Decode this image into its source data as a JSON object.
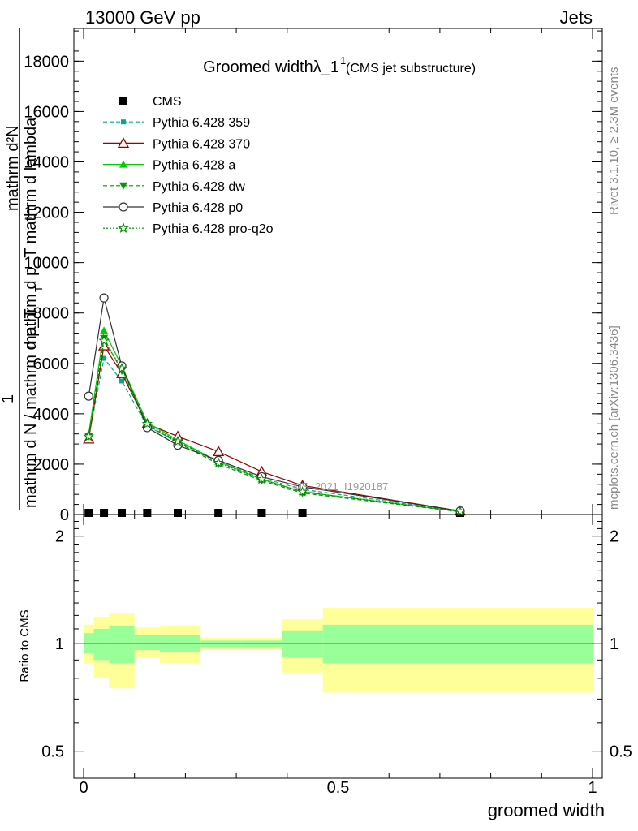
{
  "header": {
    "left": "13000 GeV pp",
    "right": "Jets"
  },
  "side_text": {
    "rivet": "Rivet 3.1.10, ≥ 2.3M events",
    "mcplots": "mcplots.cern.ch [arXiv:1306.3436]"
  },
  "analysis_label": "CMS_2021_I1920187",
  "chart_data": [
    {
      "type": "line",
      "title": "Groomed widthλ_1",
      "title_superscript": "1",
      "subtitle": "(CMS jet substructure)",
      "ylabel_numerator_line1": "mathrm d²N",
      "ylabel_numerator_line2": "mathrm d p_T mathrm d lambda",
      "ylabel_fraction_one": "1",
      "ylabel_denominator": "mathrm d N / mathrm d p_T",
      "ylabel_sub": "T",
      "xlim": [
        -0.02,
        1.02
      ],
      "ylim": [
        0,
        19300
      ],
      "yticks": [
        {
          "v": 0,
          "label": "0"
        },
        {
          "v": 2000,
          "label": "2000"
        },
        {
          "v": 4000,
          "label": "4000"
        },
        {
          "v": 6000,
          "label": "6000"
        },
        {
          "v": 8000,
          "label": "8000"
        },
        {
          "v": 10000,
          "label": "10000"
        },
        {
          "v": 12000,
          "label": "12000"
        },
        {
          "v": 14000,
          "label": "14000"
        },
        {
          "v": 16000,
          "label": "16000"
        },
        {
          "v": 18000,
          "label": "18000"
        }
      ],
      "legend_position": "top-left",
      "x": [
        0.01,
        0.04,
        0.075,
        0.125,
        0.185,
        0.265,
        0.35,
        0.43,
        0.74
      ],
      "series": [
        {
          "name": "CMS",
          "color": "#000000",
          "style": "none",
          "marker": "filled-square",
          "values": [
            40,
            40,
            30,
            20,
            15,
            10,
            8,
            6,
            2
          ]
        },
        {
          "name": "Pythia 6.428 359",
          "color": "#00aa88",
          "style": "dashed",
          "marker": "filled-square-small",
          "values": [
            3100,
            6200,
            5300,
            3500,
            2900,
            2100,
            1450,
            1000,
            130
          ]
        },
        {
          "name": "Pythia 6.428 370",
          "color": "#990000",
          "style": "solid",
          "marker": "open-triangle",
          "values": [
            3000,
            6700,
            5600,
            3600,
            3100,
            2500,
            1700,
            1150,
            140
          ]
        },
        {
          "name": "Pythia 6.428 a",
          "color": "#00cc00",
          "style": "solid",
          "marker": "filled-triangle",
          "values": [
            3200,
            7300,
            5900,
            3650,
            2950,
            2100,
            1400,
            900,
            120
          ]
        },
        {
          "name": "Pythia 6.428 dw",
          "color": "#009900",
          "style": "dashed",
          "marker": "filled-triangle-down",
          "values": [
            3100,
            7000,
            5700,
            3550,
            2850,
            2000,
            1350,
            850,
            110
          ]
        },
        {
          "name": "Pythia 6.428 p0",
          "color": "#333333",
          "style": "solid",
          "marker": "open-circle",
          "values": [
            4700,
            8600,
            5900,
            3450,
            2750,
            2150,
            1500,
            1100,
            140
          ]
        },
        {
          "name": "Pythia 6.428 pro-q2o",
          "color": "#008800",
          "style": "dotted",
          "marker": "open-star",
          "values": [
            3100,
            6900,
            5800,
            3600,
            2900,
            2050,
            1400,
            900,
            120
          ]
        }
      ]
    },
    {
      "type": "area",
      "ylabel": "Ratio to CMS",
      "xlabel": "groomed width",
      "scale": "log",
      "ylim": [
        0.42,
        2.3
      ],
      "xlim": [
        -0.02,
        1.02
      ],
      "yticks": [
        {
          "v": 0.5,
          "label": "0.5"
        },
        {
          "v": 1,
          "label": "1"
        },
        {
          "v": 2,
          "label": "2"
        }
      ],
      "xticks": [
        {
          "v": 0,
          "label": "0"
        },
        {
          "v": 0.5,
          "label": "0.5"
        },
        {
          "v": 1,
          "label": "1"
        }
      ],
      "band_colors": {
        "inner": "#99ff99",
        "outer": "#ffff99"
      },
      "bins": [
        {
          "lo": 0.0,
          "hi": 0.02,
          "in_lo": 0.94,
          "in_hi": 1.07,
          "out_lo": 0.88,
          "out_hi": 1.13
        },
        {
          "lo": 0.02,
          "hi": 0.05,
          "in_lo": 0.9,
          "in_hi": 1.1,
          "out_lo": 0.8,
          "out_hi": 1.19
        },
        {
          "lo": 0.05,
          "hi": 0.1,
          "in_lo": 0.88,
          "in_hi": 1.12,
          "out_lo": 0.75,
          "out_hi": 1.22
        },
        {
          "lo": 0.1,
          "hi": 0.15,
          "in_lo": 0.96,
          "in_hi": 1.06,
          "out_lo": 0.92,
          "out_hi": 1.11
        },
        {
          "lo": 0.15,
          "hi": 0.23,
          "in_lo": 0.95,
          "in_hi": 1.06,
          "out_lo": 0.88,
          "out_hi": 1.12
        },
        {
          "lo": 0.23,
          "hi": 0.31,
          "in_lo": 0.98,
          "in_hi": 1.02,
          "out_lo": 0.96,
          "out_hi": 1.04
        },
        {
          "lo": 0.31,
          "hi": 0.39,
          "in_lo": 0.98,
          "in_hi": 1.02,
          "out_lo": 0.96,
          "out_hi": 1.04
        },
        {
          "lo": 0.39,
          "hi": 0.47,
          "in_lo": 0.92,
          "in_hi": 1.09,
          "out_lo": 0.83,
          "out_hi": 1.17
        },
        {
          "lo": 0.47,
          "hi": 1.0,
          "in_lo": 0.88,
          "in_hi": 1.13,
          "out_lo": 0.73,
          "out_hi": 1.26
        }
      ],
      "reference": 1
    }
  ]
}
